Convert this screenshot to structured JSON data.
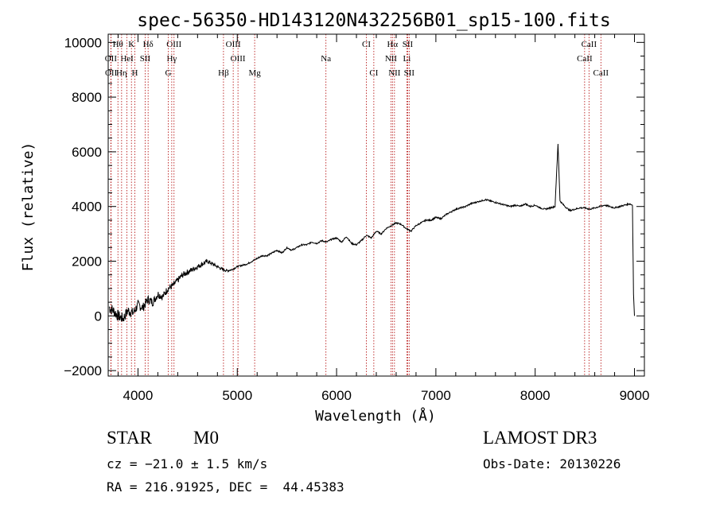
{
  "chart_data": {
    "type": "line",
    "title": "spec-56350-HD143120N432256B01_sp15-100.fits",
    "xlabel": "Wavelength (Å)",
    "ylabel": "Flux (relative)",
    "xlim": [
      3700,
      9100
    ],
    "ylim": [
      -2200,
      10300
    ],
    "xticks": [
      4000,
      5000,
      6000,
      7000,
      8000,
      9000
    ],
    "xtick_labels": [
      "4000",
      "5000",
      "6000",
      "7000",
      "8000",
      "9000"
    ],
    "yticks": [
      -2000,
      0,
      2000,
      4000,
      6000,
      8000,
      10000
    ],
    "ytick_labels": [
      "−2000",
      "0",
      "2000",
      "4000",
      "6000",
      "8000",
      "10000"
    ],
    "grid": false,
    "series": [
      {
        "name": "spectrum",
        "color": "#000000",
        "x": [
          3710,
          3750,
          3800,
          3850,
          3900,
          3950,
          4000,
          4050,
          4100,
          4150,
          4200,
          4250,
          4300,
          4350,
          4400,
          4450,
          4500,
          4550,
          4600,
          4650,
          4700,
          4750,
          4800,
          4850,
          4900,
          4950,
          5000,
          5050,
          5100,
          5150,
          5200,
          5250,
          5300,
          5350,
          5400,
          5450,
          5500,
          5550,
          5600,
          5650,
          5700,
          5750,
          5800,
          5850,
          5900,
          5950,
          6000,
          6050,
          6100,
          6150,
          6200,
          6250,
          6300,
          6350,
          6400,
          6450,
          6500,
          6550,
          6600,
          6650,
          6700,
          6750,
          6800,
          6850,
          6900,
          6950,
          7000,
          7050,
          7100,
          7150,
          7200,
          7250,
          7300,
          7350,
          7400,
          7450,
          7500,
          7550,
          7600,
          7650,
          7700,
          7750,
          7800,
          7850,
          7900,
          7950,
          8000,
          8050,
          8100,
          8150,
          8200,
          8230,
          8250,
          8300,
          8350,
          8400,
          8450,
          8500,
          8550,
          8600,
          8650,
          8700,
          8750,
          8800,
          8850,
          8900,
          8950,
          8980,
          8990,
          9000
        ],
        "y": [
          300,
          200,
          0,
          -100,
          200,
          100,
          400,
          300,
          600,
          500,
          800,
          700,
          1000,
          1100,
          1300,
          1500,
          1600,
          1700,
          1800,
          1900,
          2000,
          1900,
          1800,
          1700,
          1650,
          1700,
          1800,
          1850,
          1900,
          2000,
          2100,
          2200,
          2200,
          2300,
          2400,
          2300,
          2500,
          2400,
          2500,
          2600,
          2600,
          2700,
          2650,
          2750,
          2700,
          2800,
          2850,
          2700,
          2900,
          2650,
          2600,
          2750,
          2950,
          2850,
          3100,
          3000,
          3200,
          3300,
          3400,
          3350,
          3200,
          3100,
          3300,
          3400,
          3500,
          3500,
          3600,
          3550,
          3700,
          3800,
          3900,
          3950,
          4000,
          4100,
          4150,
          4200,
          4250,
          4200,
          4150,
          4100,
          4050,
          4000,
          4050,
          4000,
          4100,
          4000,
          4050,
          3950,
          3900,
          3950,
          4000,
          6300,
          4200,
          4000,
          3850,
          3900,
          3950,
          3950,
          3900,
          3950,
          4000,
          4050,
          4000,
          3950,
          4000,
          4050,
          4100,
          4050,
          800,
          0
        ]
      }
    ],
    "lines": [
      {
        "label": "Hθ",
        "wl": 3798,
        "row": 0
      },
      {
        "label": "K",
        "wl": 3934,
        "row": 0
      },
      {
        "label": "Hδ",
        "wl": 4102,
        "row": 0
      },
      {
        "label": "OIII",
        "wl": 4363,
        "row": 0
      },
      {
        "label": "OIII",
        "wl": 4959,
        "row": 0
      },
      {
        "label": "CI",
        "wl": 6300,
        "row": 0
      },
      {
        "label": "Hα",
        "wl": 6563,
        "row": 0
      },
      {
        "label": "SII",
        "wl": 6716,
        "row": 0
      },
      {
        "label": "CaII",
        "wl": 8542,
        "row": 0
      },
      {
        "label": "OII",
        "wl": 3727,
        "row": 1
      },
      {
        "label": "HeI",
        "wl": 3889,
        "row": 1
      },
      {
        "label": "SII",
        "wl": 4072,
        "row": 1
      },
      {
        "label": "Hγ",
        "wl": 4340,
        "row": 1
      },
      {
        "label": "OIII",
        "wl": 5007,
        "row": 1
      },
      {
        "label": "Na",
        "wl": 5893,
        "row": 1
      },
      {
        "label": "NII",
        "wl": 6548,
        "row": 1
      },
      {
        "label": "Li",
        "wl": 6708,
        "row": 1
      },
      {
        "label": "CaII",
        "wl": 8498,
        "row": 1
      },
      {
        "label": "OII",
        "wl": 3729,
        "row": 2
      },
      {
        "label": "Hη",
        "wl": 3835,
        "row": 2
      },
      {
        "label": "H",
        "wl": 3968,
        "row": 2
      },
      {
        "label": "G",
        "wl": 4305,
        "row": 2
      },
      {
        "label": "Hβ",
        "wl": 4861,
        "row": 2
      },
      {
        "label": "Mg",
        "wl": 5175,
        "row": 2
      },
      {
        "label": "CI",
        "wl": 6375,
        "row": 2
      },
      {
        "label": "NII",
        "wl": 6583,
        "row": 2
      },
      {
        "label": "SII",
        "wl": 6731,
        "row": 2
      },
      {
        "label": "CaII",
        "wl": 8662,
        "row": 2
      }
    ]
  },
  "info": {
    "class_label": "STAR",
    "subclass": "M0",
    "survey": "LAMOST DR3",
    "cz": "cz = −21.0 ± 1.5 km/s",
    "obs_date": "Obs-Date: 20130226",
    "coords": "RA = 216.91925, DEC =  44.45383"
  }
}
